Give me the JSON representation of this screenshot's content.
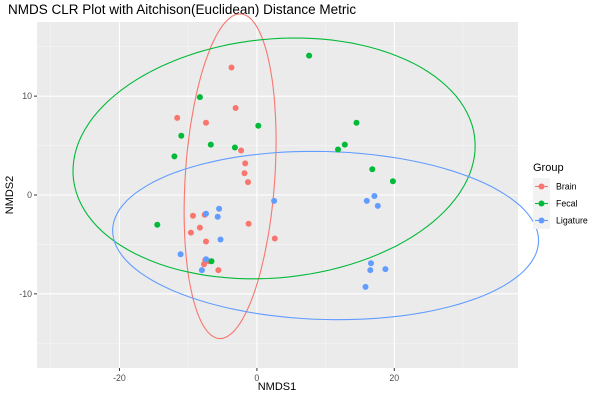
{
  "chart_data": {
    "type": "scatter",
    "title": "NMDS CLR Plot with Aitchison(Euclidean) Distance Metric",
    "xlabel": "NMDS1",
    "ylabel": "NMDS2",
    "xlim": [
      -32,
      38
    ],
    "ylim": [
      -17.5,
      17.5
    ],
    "x_ticks": [
      -20,
      0,
      20
    ],
    "y_ticks": [
      -10,
      0,
      10
    ],
    "x_tick_labels": [
      "-20",
      "0",
      "20"
    ],
    "y_tick_labels": [
      "-10",
      "0",
      "10"
    ],
    "grid": true,
    "legend_position": "right",
    "legend_title": "Group",
    "series": [
      {
        "name": "Brain",
        "color": "#F8766D",
        "points": [
          [
            -3.7,
            12.9
          ],
          [
            -3.1,
            8.8
          ],
          [
            -11.6,
            7.8
          ],
          [
            -7.4,
            7.3
          ],
          [
            -2.3,
            4.5
          ],
          [
            -1.7,
            3.2
          ],
          [
            -1.8,
            2.2
          ],
          [
            -1.3,
            1.3
          ],
          [
            -9.3,
            -2.1
          ],
          [
            -7.6,
            -2.0
          ],
          [
            -8.3,
            -3.3
          ],
          [
            -9.6,
            -3.8
          ],
          [
            -1.2,
            -2.9
          ],
          [
            2.6,
            -4.4
          ],
          [
            -7.4,
            -4.7
          ],
          [
            -7.5,
            -6.6
          ],
          [
            -7.0,
            -6.7
          ],
          [
            -7.7,
            -7.0
          ],
          [
            -5.6,
            -7.6
          ]
        ]
      },
      {
        "name": "Fecal",
        "color": "#00BA38",
        "points": [
          [
            7.6,
            14.1
          ],
          [
            -8.3,
            9.9
          ],
          [
            0.2,
            7.0
          ],
          [
            14.5,
            7.3
          ],
          [
            -11.0,
            6.0
          ],
          [
            -6.7,
            5.1
          ],
          [
            -3.2,
            4.8
          ],
          [
            12.8,
            5.1
          ],
          [
            11.8,
            4.6
          ],
          [
            -12.0,
            3.9
          ],
          [
            16.8,
            2.6
          ],
          [
            19.8,
            1.4
          ],
          [
            -14.5,
            -3.0
          ],
          [
            -6.6,
            -6.7
          ]
        ]
      },
      {
        "name": "Ligature",
        "color": "#619CFF",
        "points": [
          [
            -5.5,
            -1.4
          ],
          [
            -7.4,
            -1.9
          ],
          [
            -5.7,
            -2.2
          ],
          [
            2.5,
            -0.6
          ],
          [
            17.1,
            -0.1
          ],
          [
            16.0,
            -0.6
          ],
          [
            17.6,
            -1.1
          ],
          [
            -5.3,
            -4.5
          ],
          [
            -11.1,
            -6.0
          ],
          [
            -7.4,
            -6.5
          ],
          [
            16.6,
            -6.9
          ],
          [
            16.5,
            -7.6
          ],
          [
            18.7,
            -7.5
          ],
          [
            -8.0,
            -7.6
          ],
          [
            15.8,
            -9.3
          ]
        ]
      }
    ],
    "ellipses": [
      {
        "name": "Brain",
        "color": "#F8766D",
        "cx": -3.9,
        "cy": 1.9,
        "rx": 6.5,
        "ry": 16.5,
        "angle_deg": -6
      },
      {
        "name": "Fecal",
        "color": "#00BA38",
        "cx": 2.5,
        "cy": 3.7,
        "rx": 29.3,
        "ry": 12.1,
        "angle_deg": 3
      },
      {
        "name": "Ligature",
        "color": "#619CFF",
        "cx": 10.0,
        "cy": -4.1,
        "rx": 31.0,
        "ry": 8.5,
        "angle_deg": -1
      }
    ]
  }
}
